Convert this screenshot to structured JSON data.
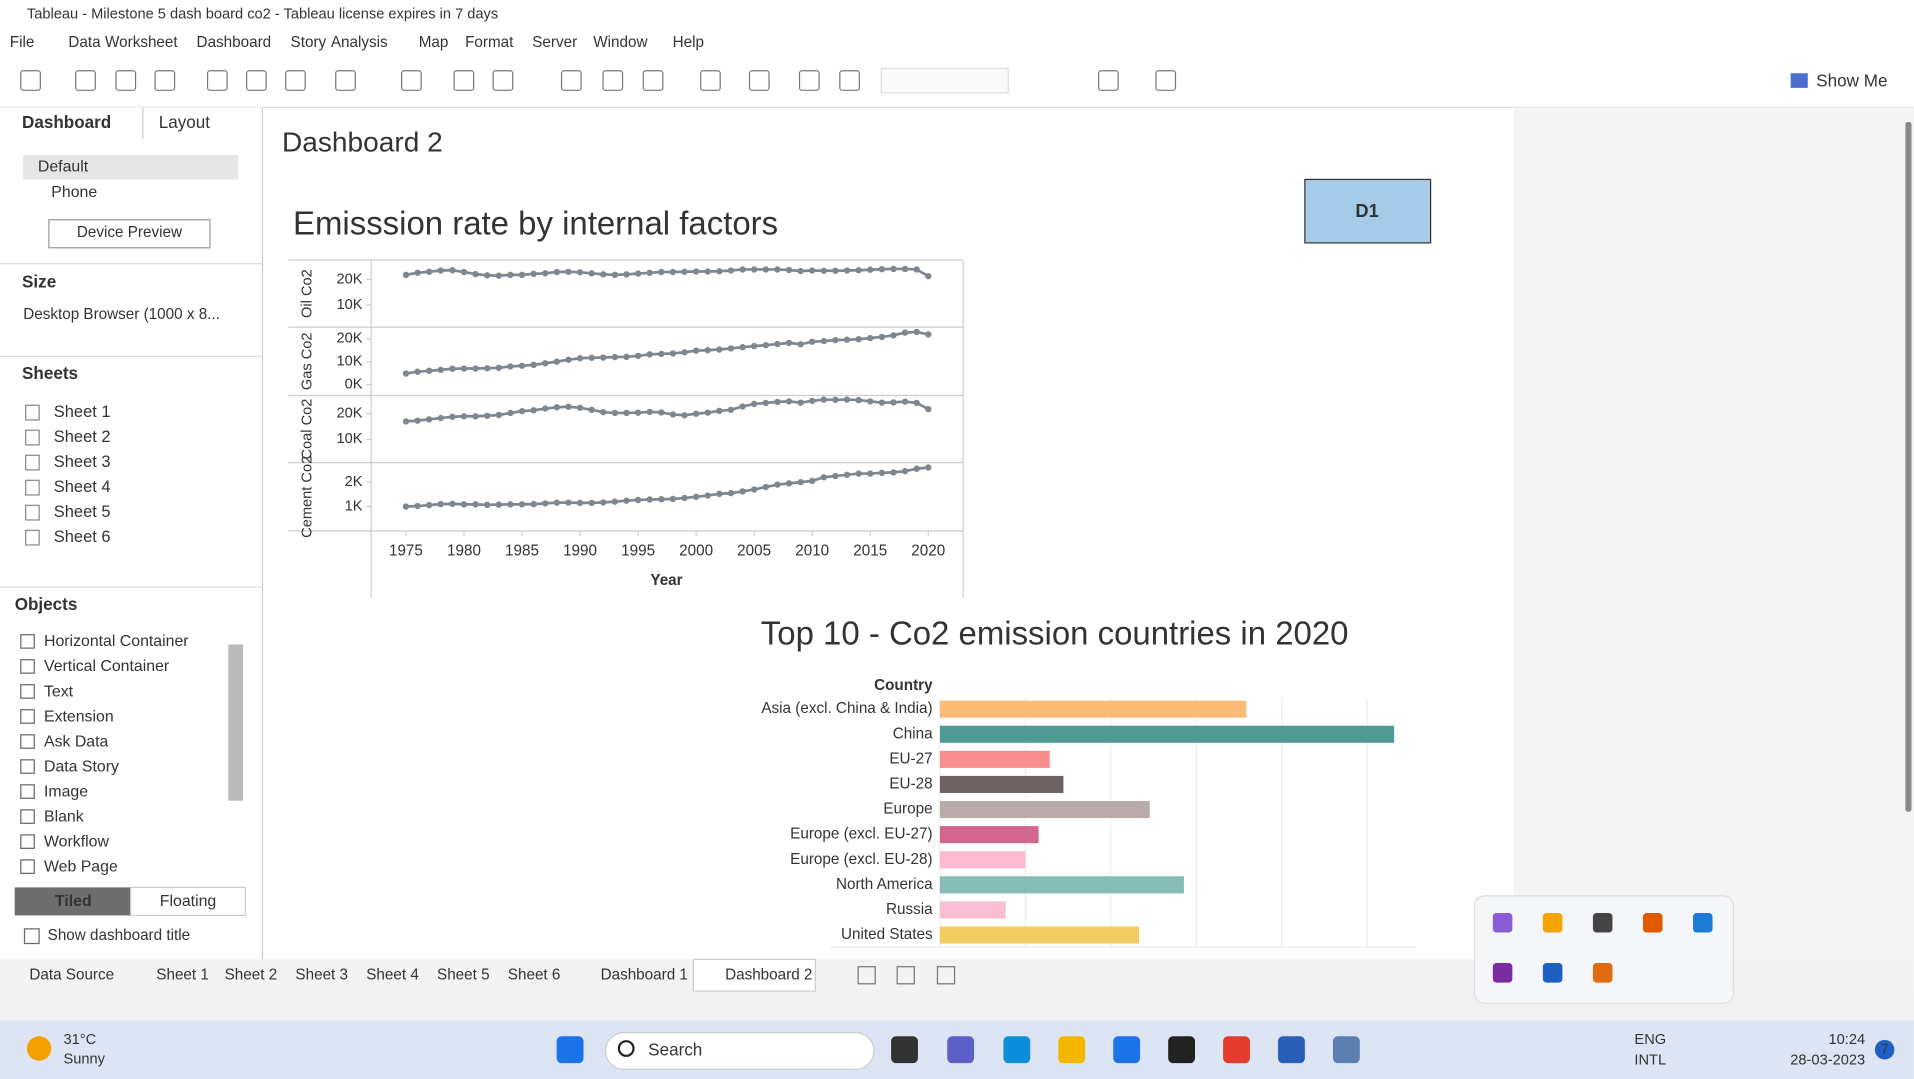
{
  "window": {
    "title": "Tableau - Milestone 5 dash board  co2 - Tableau license expires in 7 days",
    "menu": [
      "File",
      "Data",
      "Worksheet",
      "Dashboard",
      "Story",
      "Analysis",
      "Map",
      "Format",
      "Server",
      "Window",
      "Help"
    ],
    "show_me": "Show Me"
  },
  "side_panel": {
    "tabs": [
      "Dashboard",
      "Layout"
    ],
    "devices": [
      "Default",
      "Phone"
    ],
    "device_preview": "Device Preview",
    "size_label": "Size",
    "size_value": "Desktop Browser (1000 x 8...",
    "sheets_label": "Sheets",
    "sheets": [
      "Sheet 1",
      "Sheet 2",
      "Sheet 3",
      "Sheet 4",
      "Sheet 5",
      "Sheet 6"
    ],
    "objects_label": "Objects",
    "objects": [
      "Horizontal Container",
      "Vertical Container",
      "Text",
      "Extension",
      "Ask Data",
      "Data Story",
      "Image",
      "Blank",
      "Workflow",
      "Web Page"
    ],
    "layout_modes": [
      "Tiled",
      "Floating"
    ],
    "show_title": "Show dashboard title"
  },
  "dashboard": {
    "title": "Dashboard 2",
    "button": "D1"
  },
  "chart_data": [
    {
      "type": "line",
      "title": "Emisssion rate by internal factors",
      "x_label": "Year",
      "color": "#7f868e",
      "x": [
        1975,
        1976,
        1977,
        1978,
        1979,
        1980,
        1981,
        1982,
        1983,
        1984,
        1985,
        1986,
        1987,
        1988,
        1989,
        1990,
        1991,
        1992,
        1993,
        1994,
        1995,
        1996,
        1997,
        1998,
        1999,
        2000,
        2001,
        2002,
        2003,
        2004,
        2005,
        2006,
        2007,
        2008,
        2009,
        2010,
        2011,
        2012,
        2013,
        2014,
        2015,
        2016,
        2017,
        2018,
        2019,
        2020
      ],
      "xlim": [
        1972,
        2023
      ],
      "xticks": [
        1975,
        1980,
        1985,
        1990,
        1995,
        2000,
        2005,
        2010,
        2015,
        2020
      ],
      "series": [
        {
          "name": "Oil Co2",
          "ylim": [
            1400,
            27600
          ],
          "yticks": [
            {
              "value": 10000,
              "label": "10K"
            },
            {
              "value": 20000,
              "label": "20K"
            }
          ],
          "values": [
            21800,
            22600,
            23000,
            23500,
            23600,
            22900,
            22100,
            21600,
            21500,
            21800,
            21800,
            22200,
            22400,
            22900,
            23000,
            22800,
            22400,
            22000,
            21800,
            22000,
            22300,
            22600,
            22900,
            22900,
            23000,
            23100,
            23100,
            23200,
            23500,
            23900,
            23900,
            23900,
            23900,
            23700,
            23300,
            23500,
            23400,
            23400,
            23500,
            23600,
            23800,
            24000,
            24100,
            24100,
            23900,
            21300
          ]
        },
        {
          "name": "Gas Co2",
          "ylim": [
            -4800,
            25100
          ],
          "yticks": [
            {
              "value": 0,
              "label": "0K"
            },
            {
              "value": 10000,
              "label": "10K"
            },
            {
              "value": 20000,
              "label": "20K"
            }
          ],
          "values": [
            4800,
            5600,
            6000,
            6400,
            6900,
            7000,
            7000,
            7100,
            7300,
            7900,
            8200,
            8600,
            9300,
            10000,
            10800,
            11500,
            11700,
            11800,
            12000,
            12100,
            12500,
            13200,
            13400,
            13600,
            14100,
            14800,
            15000,
            15300,
            15800,
            16300,
            16800,
            17200,
            17700,
            18200,
            17600,
            18700,
            19000,
            19400,
            19600,
            19800,
            20300,
            20800,
            21500,
            22700,
            23000,
            21900
          ]
        },
        {
          "name": "Coal Co2",
          "ylim": [
            950,
            27100
          ],
          "yticks": [
            {
              "value": 10000,
              "label": "10K"
            },
            {
              "value": 20000,
              "label": "20K"
            }
          ],
          "values": [
            17000,
            17300,
            17800,
            18300,
            18800,
            19000,
            19000,
            19200,
            19500,
            20300,
            21000,
            21300,
            22000,
            22500,
            22700,
            22300,
            21500,
            20600,
            20300,
            20300,
            20400,
            20700,
            20500,
            19700,
            19400,
            20000,
            20400,
            21100,
            21500,
            22800,
            23800,
            24200,
            24600,
            24800,
            24300,
            25000,
            25500,
            25400,
            25500,
            25300,
            24800,
            24300,
            24400,
            24700,
            24200,
            21800
          ]
        },
        {
          "name": "Cement Co2",
          "ylim": [
            0,
            2800
          ],
          "yticks": [
            {
              "value": 1000,
              "label": "1K"
            },
            {
              "value": 2000,
              "label": "2K"
            }
          ],
          "values": [
            1000,
            1020,
            1060,
            1100,
            1110,
            1090,
            1090,
            1070,
            1080,
            1090,
            1090,
            1100,
            1130,
            1160,
            1160,
            1150,
            1150,
            1170,
            1200,
            1240,
            1270,
            1290,
            1300,
            1310,
            1350,
            1400,
            1450,
            1520,
            1550,
            1620,
            1700,
            1800,
            1900,
            1950,
            2000,
            2050,
            2200,
            2250,
            2300,
            2350,
            2350,
            2380,
            2400,
            2450,
            2550,
            2600
          ]
        }
      ]
    },
    {
      "type": "bar",
      "orientation": "horizontal",
      "title": "Top 10 - Co2 emission countries in 2020",
      "category_label": "Country",
      "categories": [
        "Asia (excl. China & India)",
        "China",
        "EU-27",
        "EU-28",
        "Europe",
        "Europe (excl. EU-27)",
        "Europe (excl. EU-28)",
        "North America",
        "Russia",
        "United States"
      ],
      "values": [
        7.17,
        10.63,
        2.57,
        2.89,
        4.91,
        2.31,
        2.0,
        5.71,
        1.54,
        4.66
      ],
      "colors": [
        "#fdbb78",
        "#4f9a94",
        "#f88d8d",
        "#6e6363",
        "#b9aba7",
        "#d2668f",
        "#fbbad0",
        "#86bcb6",
        "#f9bed3",
        "#f0cc63"
      ],
      "xlim": [
        0,
        11.14
      ],
      "xticks": [
        0,
        2,
        4,
        6,
        8,
        10
      ],
      "grid": true
    }
  ],
  "bottom_tabs": [
    "Data Source",
    "Sheet 1",
    "Sheet 2",
    "Sheet 3",
    "Sheet 4",
    "Sheet 5",
    "Sheet 6",
    "Dashboard 1",
    "Dashboard 2"
  ],
  "taskbar": {
    "temperature": "31°C",
    "weather": "Sunny",
    "search": "Search",
    "language": [
      "ENG",
      "INTL"
    ],
    "time": "10:24",
    "date": "28-03-2023",
    "badge": "7"
  }
}
